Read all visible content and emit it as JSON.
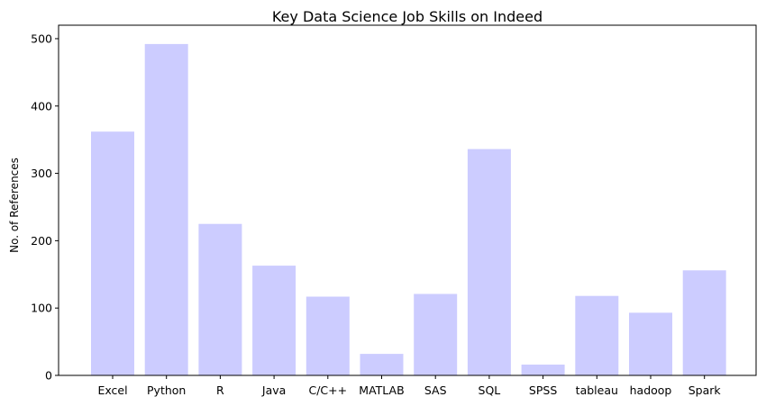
{
  "chart_data": {
    "type": "bar",
    "title": "Key Data Science Job Skills on Indeed",
    "xlabel": "",
    "ylabel": "No. of References",
    "categories": [
      "Excel",
      "Python",
      "R",
      "Java",
      "C/C++",
      "MATLAB",
      "SAS",
      "SQL",
      "SPSS",
      "tableau",
      "hadoop",
      "Spark"
    ],
    "values": [
      362,
      492,
      225,
      163,
      117,
      32,
      121,
      336,
      16,
      118,
      93,
      156
    ],
    "yticks": [
      0,
      100,
      200,
      300,
      400,
      500
    ],
    "ylim": [
      0,
      520
    ],
    "bar_color": "#ccccff",
    "grid": false,
    "legend": "none"
  }
}
